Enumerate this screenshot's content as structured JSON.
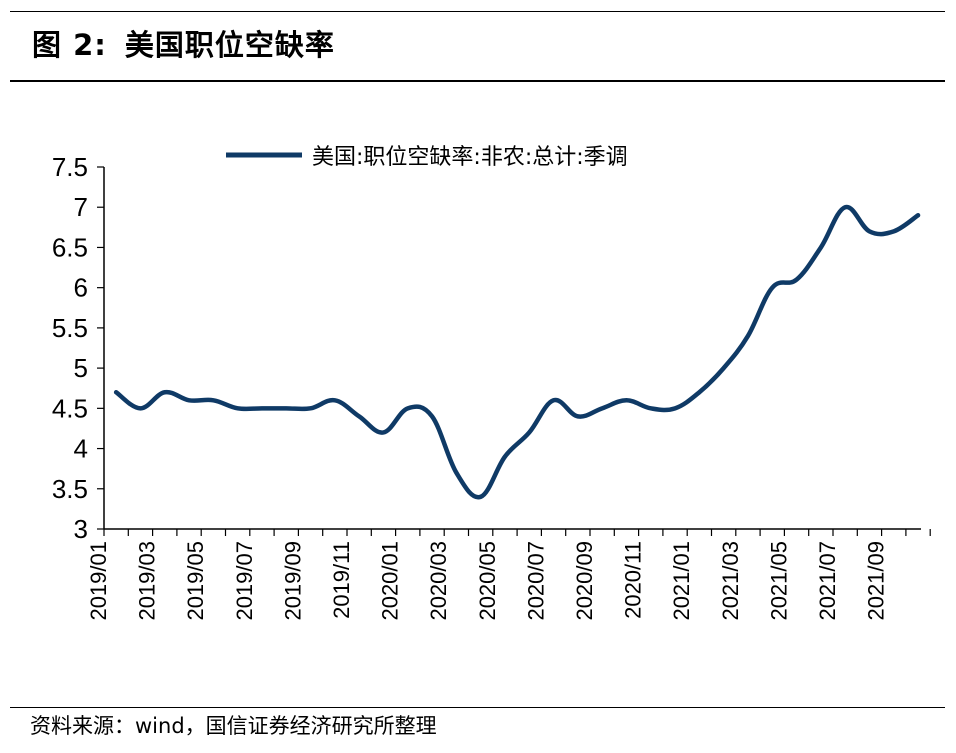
{
  "header": {
    "figure_label": "图 2:",
    "title": "美国职位空缺率"
  },
  "footer": {
    "source": "资料来源：wind，国信证券经济研究所整理"
  },
  "chart_data": {
    "type": "line",
    "title": "美国职位空缺率",
    "xlabel": "",
    "ylabel": "",
    "ylim": [
      3,
      7.5
    ],
    "yticks": [
      "7.5",
      "7",
      "6.5",
      "6",
      "5.5",
      "5",
      "4.5",
      "4",
      "3.5",
      "3"
    ],
    "ytick_values": [
      7.5,
      7,
      6.5,
      6,
      5.5,
      5,
      4.5,
      4,
      3.5,
      3
    ],
    "xtick_labels": [
      "2019/01",
      "2019/03",
      "2019/05",
      "2019/07",
      "2019/09",
      "2019/11",
      "2020/01",
      "2020/03",
      "2020/05",
      "2020/07",
      "2020/09",
      "2020/11",
      "2021/01",
      "2021/03",
      "2021/05",
      "2021/07",
      "2021/09"
    ],
    "x": [
      "2019/01",
      "2019/02",
      "2019/03",
      "2019/04",
      "2019/05",
      "2019/06",
      "2019/07",
      "2019/08",
      "2019/09",
      "2019/10",
      "2019/11",
      "2019/12",
      "2020/01",
      "2020/02",
      "2020/03",
      "2020/04",
      "2020/05",
      "2020/06",
      "2020/07",
      "2020/08",
      "2020/09",
      "2020/10",
      "2020/11",
      "2020/12",
      "2021/01",
      "2021/02",
      "2021/03",
      "2021/04",
      "2021/05",
      "2021/06",
      "2021/07",
      "2021/08",
      "2021/09",
      "2021/10"
    ],
    "series": [
      {
        "name": "美国:职位空缺率:非农:总计:季调",
        "color": "#0f3a66",
        "values": [
          4.7,
          4.5,
          4.7,
          4.6,
          4.6,
          4.5,
          4.5,
          4.5,
          4.5,
          4.6,
          4.4,
          4.2,
          4.5,
          4.4,
          3.7,
          3.4,
          3.9,
          4.2,
          4.6,
          4.4,
          4.5,
          4.6,
          4.5,
          4.5,
          4.7,
          5.0,
          5.4,
          6.0,
          6.1,
          6.5,
          7.0,
          6.7,
          6.7,
          6.9
        ]
      }
    ],
    "legend_position": "top-center",
    "grid": false
  }
}
